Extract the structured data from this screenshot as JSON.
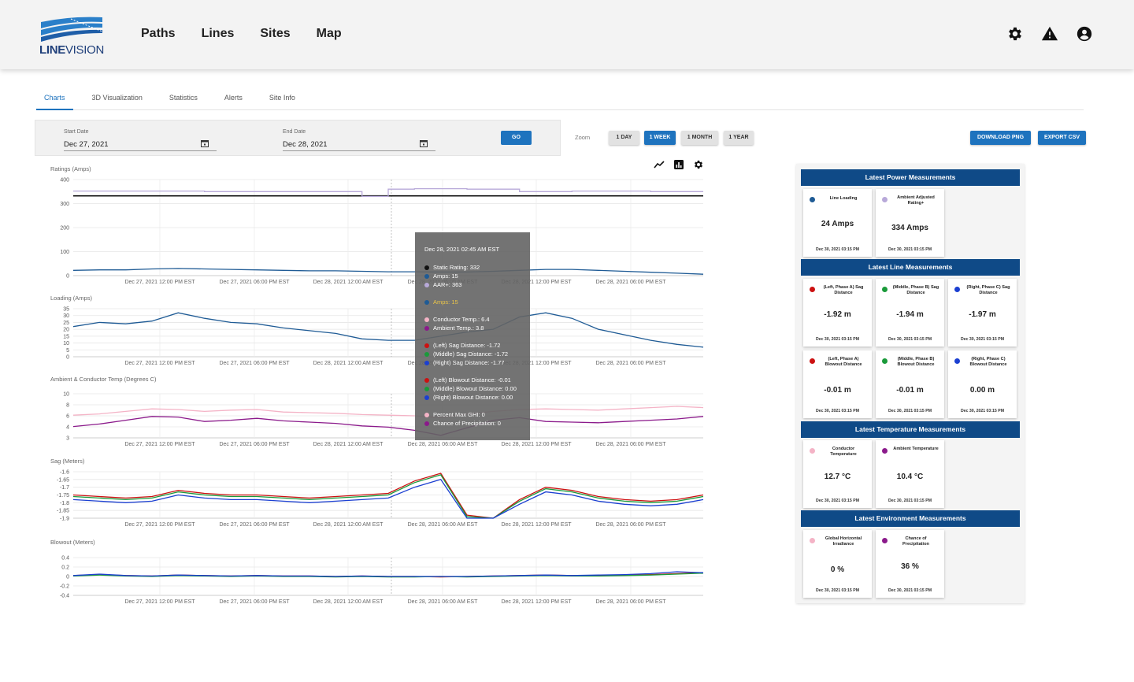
{
  "header": {
    "logo_text_bold": "LINE",
    "logo_text": "VISION",
    "nav": [
      "Paths",
      "Lines",
      "Sites",
      "Map"
    ],
    "icons": [
      "gear-icon",
      "alert-icon",
      "account-icon"
    ]
  },
  "tabs": [
    "Charts",
    "3D Visualization",
    "Statistics",
    "Alerts",
    "Site Info"
  ],
  "date_range": {
    "start_label": "Start Date",
    "start_value": "Dec 27, 2021",
    "end_label": "End Date",
    "end_value": "Dec 28, 2021",
    "go_label": "GO"
  },
  "zoom": {
    "label": "Zoom",
    "options": [
      "1 DAY",
      "1 WEEK",
      "1 MONTH",
      "1 YEAR"
    ],
    "selected": "1 WEEK"
  },
  "actions": {
    "download": "DOWNLOAD PNG",
    "export": "EXPORT CSV"
  },
  "chart_data": [
    {
      "type": "line",
      "title": "Ratings (Amps)",
      "yticks": [
        "400",
        "300",
        "200",
        "100",
        "0"
      ],
      "ylim": [
        0,
        400
      ],
      "xticks": [
        "Dec 27, 2021 12:00 PM  EST",
        "Dec 27, 2021 06:00 PM  EST",
        "Dec 28, 2021 12:00 AM  EST",
        "Dec 28, 2021 06:00 AM  EST",
        "Dec 28, 2021 12:00 PM  EST",
        "Dec 28, 2021 06:00 PM  EST"
      ],
      "series": [
        {
          "name": "Static Rating",
          "color": "#111111",
          "values": [
            332,
            332,
            332,
            332,
            332,
            332,
            332,
            332,
            332,
            332,
            332,
            332,
            332,
            332,
            332,
            332,
            332,
            332,
            332,
            332,
            332,
            332,
            332,
            332,
            332
          ]
        },
        {
          "name": "AAR+",
          "color": "#b8a9d9",
          "values": [
            352,
            352,
            352,
            352,
            352,
            350,
            350,
            350,
            350,
            350,
            350,
            330,
            360,
            362,
            362,
            360,
            360,
            350,
            350,
            352,
            352,
            352,
            350,
            350,
            350
          ]
        },
        {
          "name": "Amps",
          "color": "#1f5b95",
          "values": [
            22,
            24,
            24,
            28,
            30,
            28,
            26,
            24,
            22,
            20,
            20,
            18,
            16,
            16,
            15,
            15,
            18,
            22,
            26,
            26,
            22,
            18,
            14,
            10,
            6
          ]
        }
      ]
    },
    {
      "type": "line",
      "title": "Loading (Amps)",
      "yticks": [
        "35",
        "30",
        "25",
        "20",
        "15",
        "10",
        "5",
        "0"
      ],
      "ylim": [
        0,
        35
      ],
      "xticks": [
        "Dec 27, 2021 12:00 PM  EST",
        "Dec 27, 2021 06:00 PM  EST",
        "Dec 28, 2021 12:00 AM  EST",
        "Dec 28, 2021 06:00 AM  EST",
        "Dec 28, 2021 12:00 PM  EST",
        "Dec 28, 2021 06:00 PM  EST"
      ],
      "series": [
        {
          "name": "Amps",
          "color": "#1f5b95",
          "values": [
            22,
            25,
            24,
            26,
            32,
            28,
            25,
            24,
            21,
            19,
            17,
            13,
            12,
            12,
            15,
            18,
            20,
            29,
            32,
            28,
            20,
            16,
            12,
            9,
            7
          ]
        }
      ]
    },
    {
      "type": "line",
      "title": "Ambient & Conductor Temp (Degrees C)",
      "yticks": [
        "10",
        "8",
        "6",
        "4",
        "3"
      ],
      "ylim": [
        3,
        10
      ],
      "xticks": [
        "Dec 27, 2021 12:00 PM  EST",
        "Dec 27, 2021 06:00 PM  EST",
        "Dec 28, 2021 12:00 AM  EST",
        "Dec 28, 2021 06:00 AM  EST",
        "Dec 28, 2021 12:00 PM  EST",
        "Dec 28, 2021 06:00 PM  EST"
      ],
      "series": [
        {
          "name": "Conductor Temp",
          "color": "#f4b3c6",
          "values": [
            6.6,
            6.8,
            7.2,
            7.6,
            7.5,
            7.2,
            7.4,
            7.5,
            7.1,
            7.0,
            6.9,
            6.7,
            6.6,
            6.5,
            6.2,
            6.8,
            7.2,
            7.5,
            7.6,
            7.5,
            7.4,
            7.6,
            7.8,
            8.0,
            7.8
          ]
        },
        {
          "name": "Ambient Temp",
          "color": "#8b1a8b",
          "values": [
            4.8,
            5.2,
            5.8,
            6.4,
            6.3,
            5.6,
            5.8,
            6.1,
            5.7,
            5.5,
            5.3,
            4.9,
            4.7,
            4.2,
            3.4,
            4.6,
            5.8,
            6.2,
            5.6,
            5.5,
            5.4,
            5.6,
            5.8,
            6.0,
            6.4
          ]
        }
      ]
    },
    {
      "type": "line",
      "title": "Sag  (Meters)",
      "yticks": [
        "-1.6",
        "-1.65",
        "-1.7",
        "-1.75",
        "-1.8",
        "-1.85",
        "-1.9"
      ],
      "ylim": [
        -1.9,
        -1.6
      ],
      "xticks": [
        "Dec 27, 2021 12:00 PM  EST",
        "Dec 27, 2021 06:00 PM  EST",
        "Dec 28, 2021 12:00 AM  EST",
        "Dec 28, 2021 06:00 AM  EST",
        "Dec 28, 2021 12:00 PM  EST",
        "Dec 28, 2021 06:00 PM  EST"
      ],
      "series": [
        {
          "name": "(Left) Sag Distance",
          "color": "#cc1111",
          "values": [
            -1.75,
            -1.76,
            -1.77,
            -1.76,
            -1.72,
            -1.74,
            -1.75,
            -1.75,
            -1.76,
            -1.77,
            -1.76,
            -1.75,
            -1.74,
            -1.66,
            -1.61,
            -1.88,
            -1.9,
            -1.78,
            -1.7,
            -1.72,
            -1.76,
            -1.78,
            -1.79,
            -1.78,
            -1.75
          ]
        },
        {
          "name": "(Middle) Sag Distance",
          "color": "#1a9a3a",
          "values": [
            -1.76,
            -1.77,
            -1.78,
            -1.77,
            -1.73,
            -1.75,
            -1.76,
            -1.76,
            -1.77,
            -1.78,
            -1.77,
            -1.76,
            -1.75,
            -1.67,
            -1.62,
            -1.89,
            -1.9,
            -1.79,
            -1.71,
            -1.73,
            -1.77,
            -1.79,
            -1.8,
            -1.79,
            -1.76
          ]
        },
        {
          "name": "(Right) Sag Distance",
          "color": "#1b3fd1",
          "values": [
            -1.78,
            -1.79,
            -1.8,
            -1.79,
            -1.75,
            -1.77,
            -1.78,
            -1.78,
            -1.79,
            -1.8,
            -1.79,
            -1.78,
            -1.77,
            -1.7,
            -1.65,
            -1.9,
            -1.9,
            -1.81,
            -1.73,
            -1.75,
            -1.79,
            -1.81,
            -1.82,
            -1.81,
            -1.78
          ]
        }
      ]
    },
    {
      "type": "line",
      "title": "Blowout (Meters)",
      "yticks": [
        "0.4",
        "0.2",
        "0",
        "-0.2",
        "-0.4"
      ],
      "ylim": [
        -0.4,
        0.4
      ],
      "xticks": [
        "Dec 27, 2021 12:00 PM  EST",
        "Dec 27, 2021 06:00 PM  EST",
        "Dec 28, 2021 12:00 AM  EST",
        "Dec 28, 2021 06:00 AM  EST",
        "Dec 28, 2021 12:00 PM  EST",
        "Dec 28, 2021 06:00 PM  EST"
      ],
      "series": [
        {
          "name": "(Left) Blowout Distance",
          "color": "#cc1111",
          "values": [
            0.02,
            0.04,
            0.02,
            0.01,
            0.03,
            0.02,
            0.01,
            0.02,
            0.01,
            0.01,
            0.0,
            0.01,
            0.0,
            0.0,
            -0.01,
            0.0,
            0.01,
            0.02,
            0.03,
            0.02,
            0.02,
            0.03,
            0.04,
            0.06,
            0.08
          ]
        },
        {
          "name": "(Middle) Blowout Distance",
          "color": "#1a9a3a",
          "values": [
            0.01,
            0.03,
            0.01,
            0.0,
            0.02,
            0.01,
            0.0,
            0.01,
            0.0,
            0.0,
            -0.01,
            0.0,
            -0.01,
            -0.01,
            0.0,
            -0.01,
            0.0,
            0.01,
            0.02,
            0.01,
            0.01,
            0.02,
            0.03,
            0.05,
            0.07
          ]
        },
        {
          "name": "(Right) Blowout Distance",
          "color": "#1b3fd1",
          "values": [
            0.02,
            0.05,
            0.02,
            0.01,
            0.03,
            0.02,
            0.01,
            0.02,
            0.01,
            0.01,
            0.0,
            0.01,
            0.0,
            0.0,
            0.0,
            0.0,
            0.01,
            0.02,
            0.03,
            0.02,
            0.03,
            0.04,
            0.06,
            0.1,
            0.08
          ]
        }
      ]
    }
  ],
  "tooltip": {
    "title": "Dec 28, 2021 02:45 AM EST",
    "rows": [
      {
        "text": "Static Rating: 332",
        "color": "#111111"
      },
      {
        "text": "Amps: 15",
        "color": "#1f5b95"
      },
      {
        "text": "AAR+: 363",
        "color": "#b8a9d9"
      },
      {
        "text": "",
        "color": ""
      },
      {
        "text": "Amps: 15",
        "color": "#1f5b95",
        "highlight": true
      },
      {
        "text": "",
        "color": ""
      },
      {
        "text": "Conductor Temp.: 6.4",
        "color": "#f4b3c6"
      },
      {
        "text": "Ambient Temp.: 3.8",
        "color": "#8b1a8b"
      },
      {
        "text": "",
        "color": ""
      },
      {
        "text": "(Left) Sag Distance: -1.72",
        "color": "#cc1111"
      },
      {
        "text": "(Middle) Sag Distance: -1.72",
        "color": "#1a9a3a"
      },
      {
        "text": "(Right) Sag Distance: -1.77",
        "color": "#1b3fd1"
      },
      {
        "text": "",
        "color": ""
      },
      {
        "text": "(Left) Blowout Distance: -0.01",
        "color": "#cc1111"
      },
      {
        "text": "(Middle) Blowout Distance: 0.00",
        "color": "#1a9a3a"
      },
      {
        "text": "(Right) Blowout Distance: 0.00",
        "color": "#1b3fd1"
      },
      {
        "text": "",
        "color": ""
      },
      {
        "text": "Percent Max GHI: 0",
        "color": "#f4b3c6"
      },
      {
        "text": "Chance of Precipitation: 0",
        "color": "#8b1a8b"
      }
    ]
  },
  "panel": {
    "sections": [
      {
        "title": "Latest Power Measurements",
        "cards": [
          {
            "label": "Line Loading",
            "value": "24 Amps",
            "date": "Dec 30, 2021 03:15 PM",
            "color": "#1f5b95"
          },
          {
            "label": "Ambient Adjusted Rating+",
            "value": "334 Amps",
            "date": "Dec 30, 2021 03:15 PM",
            "color": "#b8a9d9"
          }
        ]
      },
      {
        "title": "Latest Line Measurements",
        "cards": [
          {
            "label": "(Left, Phase A) Sag Distance",
            "value": "-1.92 m",
            "date": "Dec 30, 2021 03:15 PM",
            "color": "#cc1111"
          },
          {
            "label": "(Middle, Phase B) Sag Distance",
            "value": "-1.94 m",
            "date": "Dec 30, 2021 03:15 PM",
            "color": "#1a9a3a"
          },
          {
            "label": "(Right, Phase C) Sag Distance",
            "value": "-1.97 m",
            "date": "Dec 30, 2021 03:15 PM",
            "color": "#1b3fd1"
          },
          {
            "label": "(Left, Phase A) Blowout Distance",
            "value": "-0.01 m",
            "date": "Dec 30, 2021 03:15 PM",
            "color": "#cc1111"
          },
          {
            "label": "(Middle, Phase B) Blowout Distance",
            "value": "-0.01 m",
            "date": "Dec 30, 2021 03:15 PM",
            "color": "#1a9a3a"
          },
          {
            "label": "(Right, Phase C) Blowout Distance",
            "value": "0.00 m",
            "date": "Dec 30, 2021 03:15 PM",
            "color": "#1b3fd1"
          }
        ]
      },
      {
        "title": "Latest Temperature Measurements",
        "cards": [
          {
            "label": "Conductor Temperature",
            "value": "12.7 °C",
            "date": "Dec 30, 2021 03:15 PM",
            "color": "#f4b3c6"
          },
          {
            "label": "Ambient Temperature",
            "value": "10.4 °C",
            "date": "Dec 30, 2021 03:15 PM",
            "color": "#8b1a8b"
          }
        ]
      },
      {
        "title": "Latest Environment Measurements",
        "cards": [
          {
            "label": "Global Horizontal Irradiance",
            "value": "0 %",
            "date": "Dec 30, 2021 03:15 PM",
            "color": "#f4b3c6"
          },
          {
            "label": "Chance of Precipitation",
            "value": "36 %",
            "date": "Dec 30, 2021 03:15 PM",
            "color": "#8b1a8b"
          }
        ]
      }
    ]
  }
}
